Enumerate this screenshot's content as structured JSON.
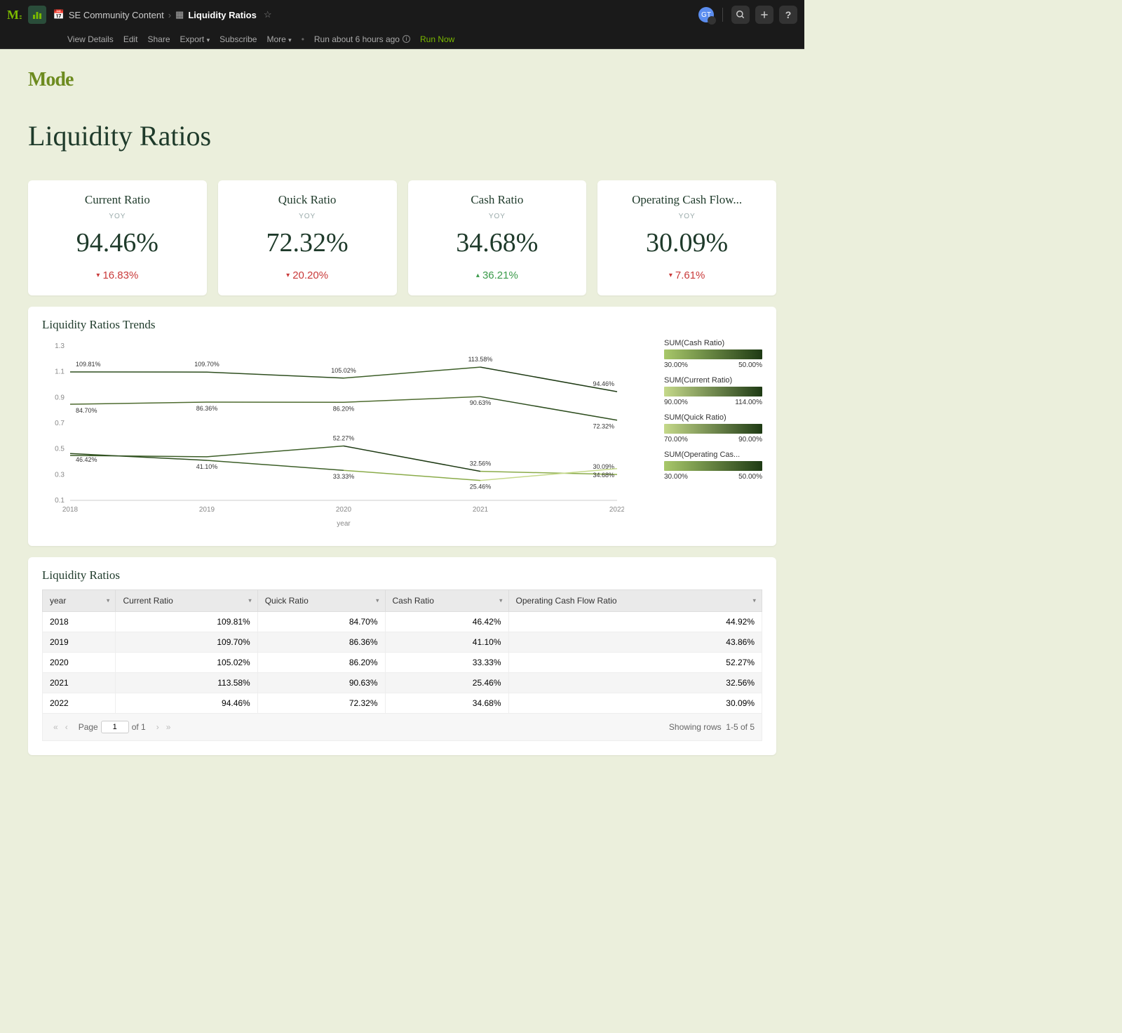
{
  "topbar": {
    "collection": "SE Community Content",
    "report": "Liquidity Ratios",
    "menu": {
      "view_details": "View Details",
      "edit": "Edit",
      "share": "Share",
      "export": "Export",
      "subscribe": "Subscribe",
      "more": "More"
    },
    "last_run": "Run about 6 hours ago",
    "run_now": "Run Now",
    "avatar_initials": "GT"
  },
  "brand": "Mode",
  "page_title": "Liquidity Ratios",
  "kpis": [
    {
      "title": "Current Ratio",
      "sub": "YOY",
      "value": "94.46%",
      "delta": "16.83%",
      "dir": "down"
    },
    {
      "title": "Quick Ratio",
      "sub": "YOY",
      "value": "72.32%",
      "delta": "20.20%",
      "dir": "down"
    },
    {
      "title": "Cash Ratio",
      "sub": "YOY",
      "value": "34.68%",
      "delta": "36.21%",
      "dir": "up"
    },
    {
      "title": "Operating Cash Flow...",
      "sub": "YOY",
      "value": "30.09%",
      "delta": "7.61%",
      "dir": "down"
    }
  ],
  "trend_chart": {
    "title": "Liquidity Ratios Trends",
    "x_label": "year",
    "categories": [
      "2018",
      "2019",
      "2020",
      "2021",
      "2022"
    ],
    "ylim": [
      0.1,
      1.3
    ],
    "ytick_step": 0.2,
    "grid_color": "#e5e5e5",
    "axis_color": "#cccccc",
    "background_color": "#ffffff",
    "label_color": "#888888",
    "label_fontsize": 10,
    "point_label_fontsize": 9,
    "point_label_color": "#333333",
    "line_width": 1.5,
    "series": [
      {
        "name": "Current Ratio",
        "values": [
          1.0981,
          1.097,
          1.0502,
          1.1358,
          0.9446
        ],
        "labels": [
          "109.81%",
          "109.70%",
          "105.02%",
          "113.58%",
          "94.46%"
        ],
        "colors": [
          "#2e4e1f",
          "#2e4e1f",
          "#3c5e27",
          "#1e3a14",
          "#6d8b3f"
        ]
      },
      {
        "name": "Quick Ratio",
        "values": [
          0.847,
          0.8636,
          0.862,
          0.9063,
          0.7232
        ],
        "labels": [
          "84.70%",
          "86.36%",
          "86.20%",
          "90.63%",
          "72.32%"
        ],
        "colors": [
          "#4e6b2f",
          "#4e6b2f",
          "#4e6b2f",
          "#2e4e1f",
          "#9bbb59"
        ]
      },
      {
        "name": "Operating Cash Flow",
        "values": [
          0.4492,
          0.4386,
          0.5227,
          0.3256,
          0.3009
        ],
        "labels": [
          "",
          "",
          "52.27%",
          "32.56%",
          "30.09%"
        ],
        "colors": [
          "#3c5e27",
          "#3c5e27",
          "#1e3a14",
          "#8aab49",
          "#9bbb59"
        ]
      },
      {
        "name": "Cash Ratio",
        "values": [
          0.4642,
          0.411,
          0.3333,
          0.2546,
          0.3468
        ],
        "labels": [
          "46.42%",
          "41.10%",
          "33.33%",
          "25.46%",
          "34.68%"
        ],
        "colors": [
          "#2e4e1f",
          "#3c5e27",
          "#8aab49",
          "#c5d98a",
          "#8aab49"
        ]
      }
    ],
    "extra_label_46": "46.42%",
    "legends": [
      {
        "label": "SUM(Cash Ratio)",
        "grad": [
          "#a8c86a",
          "#1e3a14"
        ],
        "min": "30.00%",
        "max": "50.00%"
      },
      {
        "label": "SUM(Current Ratio)",
        "grad": [
          "#c5d98a",
          "#1e3a14"
        ],
        "min": "90.00%",
        "max": "114.00%"
      },
      {
        "label": "SUM(Quick Ratio)",
        "grad": [
          "#c5d98a",
          "#1e3a14"
        ],
        "min": "70.00%",
        "max": "90.00%"
      },
      {
        "label": "SUM(Operating Cas...",
        "grad": [
          "#a8c86a",
          "#1e3a14"
        ],
        "min": "30.00%",
        "max": "50.00%"
      }
    ]
  },
  "data_table": {
    "title": "Liquidity Ratios",
    "columns": [
      "year",
      "Current Ratio",
      "Quick Ratio",
      "Cash Ratio",
      "Operating Cash Flow Ratio"
    ],
    "rows": [
      [
        "2018",
        "109.81%",
        "84.70%",
        "46.42%",
        "44.92%"
      ],
      [
        "2019",
        "109.70%",
        "86.36%",
        "41.10%",
        "43.86%"
      ],
      [
        "2020",
        "105.02%",
        "86.20%",
        "33.33%",
        "52.27%"
      ],
      [
        "2021",
        "113.58%",
        "90.63%",
        "25.46%",
        "32.56%"
      ],
      [
        "2022",
        "94.46%",
        "72.32%",
        "34.68%",
        "30.09%"
      ]
    ],
    "pager": {
      "page_label": "Page",
      "current": "1",
      "of_label": "of 1",
      "showing": "Showing rows",
      "range": "1-5 of 5"
    }
  }
}
